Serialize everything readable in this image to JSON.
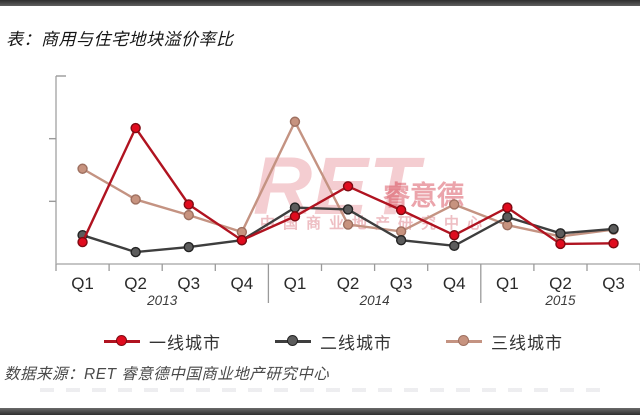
{
  "page": {
    "title": "表：商用与住宅地块溢价率比",
    "source_text": "数据来源：RET 睿意德中国商业地产研究中心"
  },
  "watermark": {
    "brand": "RET",
    "brand_cn": "睿意德",
    "tagline": "中国商业地产研究中心"
  },
  "chart_data": {
    "type": "line",
    "title": "商用与住宅地块溢价率比",
    "categories": [
      "Q1",
      "Q2",
      "Q3",
      "Q4",
      "Q1",
      "Q2",
      "Q3",
      "Q4",
      "Q1",
      "Q2",
      "Q3"
    ],
    "year_groups": [
      {
        "label": "2013",
        "span": [
          0,
          3
        ]
      },
      {
        "label": "2014",
        "span": [
          4,
          7
        ]
      },
      {
        "label": "2015",
        "span": [
          8,
          10
        ]
      }
    ],
    "series": [
      {
        "name": "一线城市",
        "color": "#b01320",
        "marker_fill": "#e00b1e",
        "marker_stroke": "#7e0a12",
        "values": [
          0.35,
          2.17,
          0.95,
          0.38,
          0.76,
          1.24,
          0.86,
          0.46,
          0.9,
          0.32,
          0.33
        ]
      },
      {
        "name": "二线城市",
        "color": "#3e3e3e",
        "marker_fill": "#5c5c5c",
        "marker_stroke": "#232323",
        "values": [
          0.46,
          0.19,
          0.27,
          0.38,
          0.9,
          0.87,
          0.38,
          0.29,
          0.75,
          0.49,
          0.56
        ]
      },
      {
        "name": "三线城市",
        "color": "#c49382",
        "marker_fill": "#c7937f",
        "marker_stroke": "#9e7060",
        "values": [
          1.52,
          1.03,
          0.78,
          0.51,
          2.27,
          0.63,
          0.52,
          0.95,
          0.62,
          0.44,
          0.55
        ]
      }
    ],
    "xlabel": "",
    "ylabel": "",
    "ylim": [
      0,
      3
    ],
    "y_axis_labels_visible": false,
    "grid": false,
    "legend_position": "bottom",
    "note": "Y axis has unlabeled ticks; values are relative units estimated from tick spacing"
  }
}
